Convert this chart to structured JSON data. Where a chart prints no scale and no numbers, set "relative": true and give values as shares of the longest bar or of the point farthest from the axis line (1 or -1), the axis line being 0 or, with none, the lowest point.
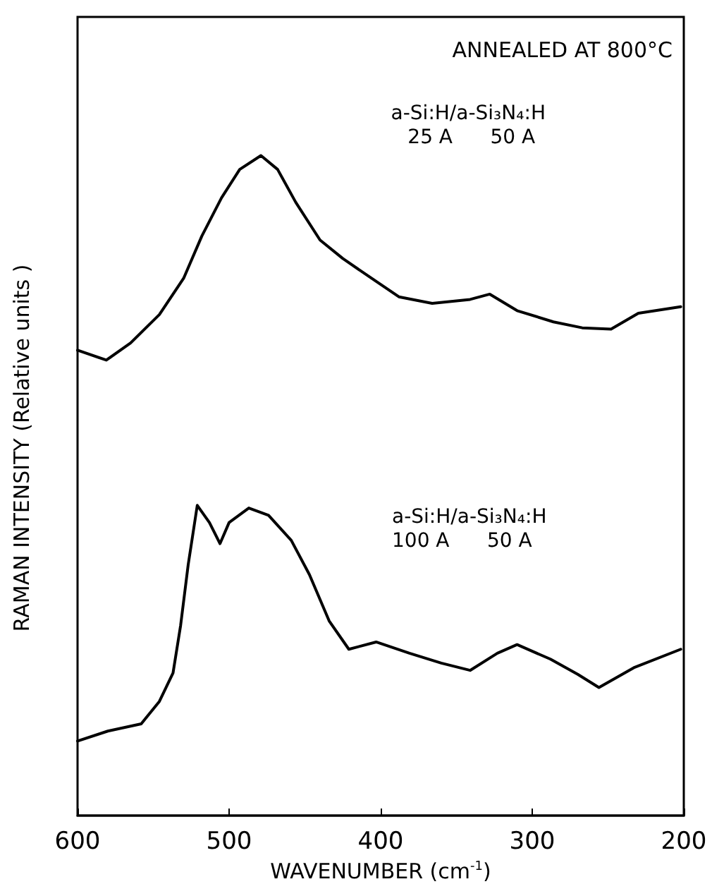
{
  "chart_data": {
    "type": "line",
    "xlabel": "WAVENUMBER (cm$^{-1}$)",
    "ylabel": "RAMAN INTENSITY (Relative units )",
    "relative": true,
    "tick_labels": "x",
    "grid": false,
    "marker": "none",
    "line_style": "solid",
    "xlim": [
      600,
      200
    ],
    "xticks": [
      600,
      500,
      400,
      300,
      200
    ],
    "annotations": [
      "ANNEALED AT 800°C",
      "a-Si:H/a-Si₃N₄:H\n 25 A      50 A",
      "a-Si:H/a-Si₃N₄:H\n100 A      50 A"
    ],
    "series": [
      {
        "color": "#000000",
        "x": [
          600,
          581,
          565,
          546,
          530,
          518,
          505,
          493,
          479,
          468,
          456,
          440,
          425,
          406,
          388,
          366,
          341,
          328,
          310,
          286,
          267,
          248,
          230,
          202
        ],
        "values": [
          0.705,
          0.69,
          0.716,
          0.759,
          0.814,
          0.878,
          0.936,
          0.979,
          1.0,
          0.979,
          0.929,
          0.872,
          0.844,
          0.814,
          0.786,
          0.776,
          0.782,
          0.79,
          0.765,
          0.748,
          0.739,
          0.737,
          0.761,
          0.771
        ]
      },
      {
        "color": "#000000",
        "x": [
          600,
          580,
          558,
          546,
          537,
          532,
          527,
          521,
          513,
          506,
          500,
          487,
          474,
          459,
          447,
          434,
          421,
          403,
          381,
          360,
          341,
          323,
          310,
          288,
          270,
          256,
          233,
          202
        ],
        "values": [
          0.113,
          0.128,
          0.139,
          0.173,
          0.216,
          0.288,
          0.38,
          0.47,
          0.444,
          0.412,
          0.444,
          0.466,
          0.455,
          0.417,
          0.365,
          0.295,
          0.252,
          0.263,
          0.246,
          0.231,
          0.22,
          0.246,
          0.259,
          0.237,
          0.214,
          0.194,
          0.224,
          0.252
        ]
      }
    ]
  }
}
